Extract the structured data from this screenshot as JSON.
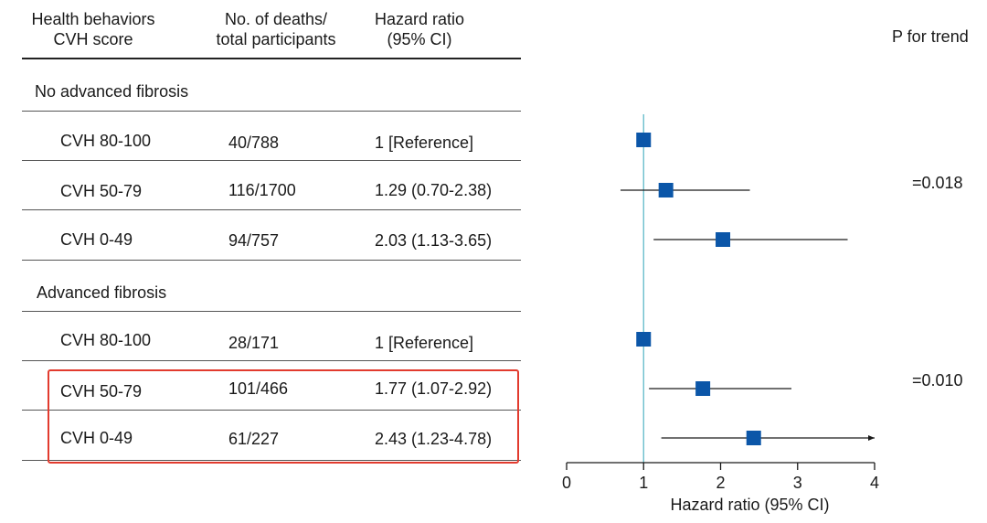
{
  "headers": {
    "behaviors": "Health behaviors\nCVH score",
    "deaths": "No. of deaths/\ntotal participants",
    "hr": "Hazard ratio\n(95% CI)",
    "p_trend": "P for trend"
  },
  "groups": [
    {
      "label": "No advanced fibrosis",
      "p_value": "=0.018",
      "rows": [
        {
          "score": "CVH 80-100",
          "deaths": "40/788",
          "hr_text": "1 [Reference]"
        },
        {
          "score": "CVH 50-79",
          "deaths": "116/1700",
          "hr_text": "1.29 (0.70-2.38)"
        },
        {
          "score": "CVH 0-49",
          "deaths": "94/757",
          "hr_text": "2.03 (1.13-3.65)"
        }
      ]
    },
    {
      "label": "Advanced fibrosis",
      "p_value": "=0.010",
      "rows": [
        {
          "score": "CVH 80-100",
          "deaths": "28/171",
          "hr_text": "1 [Reference]"
        },
        {
          "score": "CVH 50-79",
          "deaths": "101/466",
          "hr_text": "1.77 (1.07-2.92)"
        },
        {
          "score": "CVH 0-49",
          "deaths": "61/227",
          "hr_text": "2.43 (1.23-4.78)"
        }
      ]
    }
  ],
  "chart_data": {
    "type": "forest",
    "xlabel": "Hazard ratio (95% CI)",
    "xlim": [
      0,
      4
    ],
    "xticks": [
      0,
      1,
      2,
      3,
      4
    ],
    "reference_line": 1,
    "points": [
      {
        "group": "No advanced fibrosis",
        "label": "CVH 80-100",
        "hr": 1,
        "lo": 1,
        "hi": 1
      },
      {
        "group": "No advanced fibrosis",
        "label": "CVH 50-79",
        "hr": 1.29,
        "lo": 0.7,
        "hi": 2.38
      },
      {
        "group": "No advanced fibrosis",
        "label": "CVH 0-49",
        "hr": 2.03,
        "lo": 1.13,
        "hi": 3.65
      },
      {
        "group": "Advanced fibrosis",
        "label": "CVH 80-100",
        "hr": 1,
        "lo": 1,
        "hi": 1
      },
      {
        "group": "Advanced fibrosis",
        "label": "CVH 50-79",
        "hr": 1.77,
        "lo": 1.07,
        "hi": 2.92
      },
      {
        "group": "Advanced fibrosis",
        "label": "CVH 0-49",
        "hr": 2.43,
        "lo": 1.23,
        "hi": 4.78
      }
    ],
    "colors": {
      "marker": "#0b56a8",
      "reference_line": "#5fb9c8",
      "whisker": "#1a1a1a",
      "highlight": "#e23b2e"
    }
  }
}
